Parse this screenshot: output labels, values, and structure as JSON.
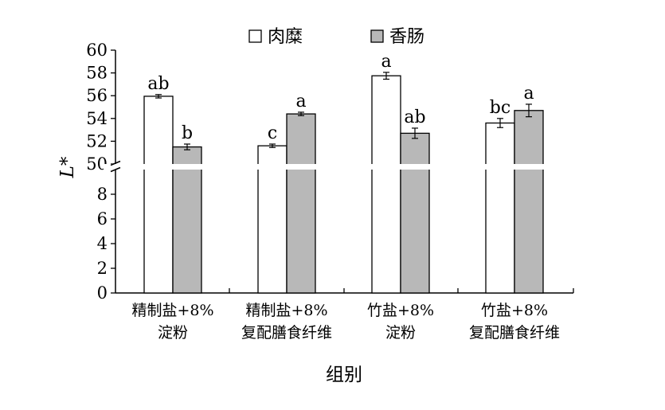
{
  "chart_data": {
    "type": "bar",
    "title": "",
    "xlabel": "组别",
    "ylabel": "L*",
    "ylim": [
      0,
      60
    ],
    "axis_break": {
      "lower_segment": [
        0,
        10
      ],
      "upper_segment": [
        50,
        60
      ]
    },
    "yticks_lower": [
      "0",
      "2",
      "4",
      "6",
      "8"
    ],
    "yticks_upper": [
      "50",
      "52",
      "54",
      "56",
      "58",
      "60"
    ],
    "legend_position": "top-center",
    "categories": [
      [
        "精制盐+8%",
        "淀粉"
      ],
      [
        "精制盐+8%",
        "复配膳食纤维"
      ],
      [
        "竹盐+8%",
        "淀粉"
      ],
      [
        "竹盐+8%",
        "复配膳食纤维"
      ]
    ],
    "series": [
      {
        "name": "肉糜",
        "color": "#ffffff",
        "values": [
          55.95,
          51.6,
          57.75,
          53.6
        ],
        "errors": [
          0.15,
          0.15,
          0.3,
          0.4
        ],
        "labels": [
          "ab",
          "c",
          "a",
          "bc"
        ]
      },
      {
        "name": "香肠",
        "color": "#b8b8b8",
        "values": [
          51.5,
          54.4,
          52.7,
          54.7
        ],
        "errors": [
          0.25,
          0.15,
          0.45,
          0.55
        ],
        "labels": [
          "b",
          "a",
          "ab",
          "a"
        ]
      }
    ]
  }
}
